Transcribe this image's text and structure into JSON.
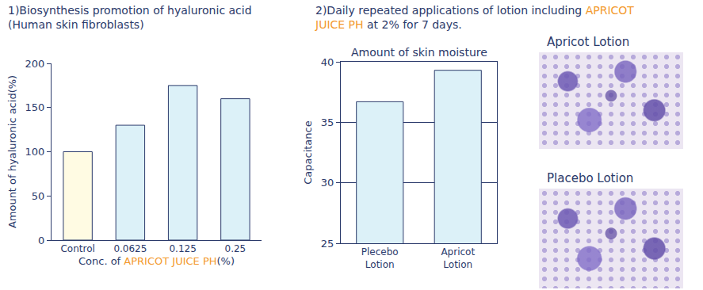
{
  "chart_data": [
    {
      "type": "bar",
      "title": [
        [
          "1)Biosynthesis promotion of hyaluronic acid"
        ],
        [
          "(Human skin fibroblasts)"
        ]
      ],
      "categories": [
        "Control",
        "0.0625",
        "0.125",
        "0.25"
      ],
      "values": [
        100,
        130,
        175,
        160
      ],
      "colors": [
        "#fffbe3",
        "#dcf1f8",
        "#dcf1f8",
        "#dcf1f8"
      ],
      "ylabel": "Amount of hyaluronic acid(%)",
      "xlabel": [
        "Conc. of ",
        {
          "text": "APRICOT JUICE PH",
          "color": "#f39a2e"
        },
        "(%)"
      ],
      "ylim": [
        0,
        200
      ],
      "yticks": [
        0,
        50,
        100,
        150,
        200
      ],
      "grid": false
    },
    {
      "type": "bar",
      "title": [
        [
          "2)Daily repeated applications of lotion including ",
          {
            "text": "APRICOT",
            "color": "#f39a2e"
          }
        ],
        [
          {
            "text": "JUICE PH",
            "color": "#f39a2e"
          },
          " at 2% for 7 days."
        ]
      ],
      "subtitle": "Amount of skin moisture",
      "categories": [
        "Plecebo Lotion",
        "Apricot Lotion"
      ],
      "values": [
        36.7,
        39.3
      ],
      "color": "#dcf1f8",
      "ylabel": "Capacitance",
      "ylim": [
        25,
        40
      ],
      "yticks": [
        25,
        30,
        35,
        40
      ],
      "grid": true
    }
  ],
  "micrographs": [
    {
      "label": "Apricot Lotion"
    },
    {
      "label": "Placebo Lotion"
    }
  ]
}
